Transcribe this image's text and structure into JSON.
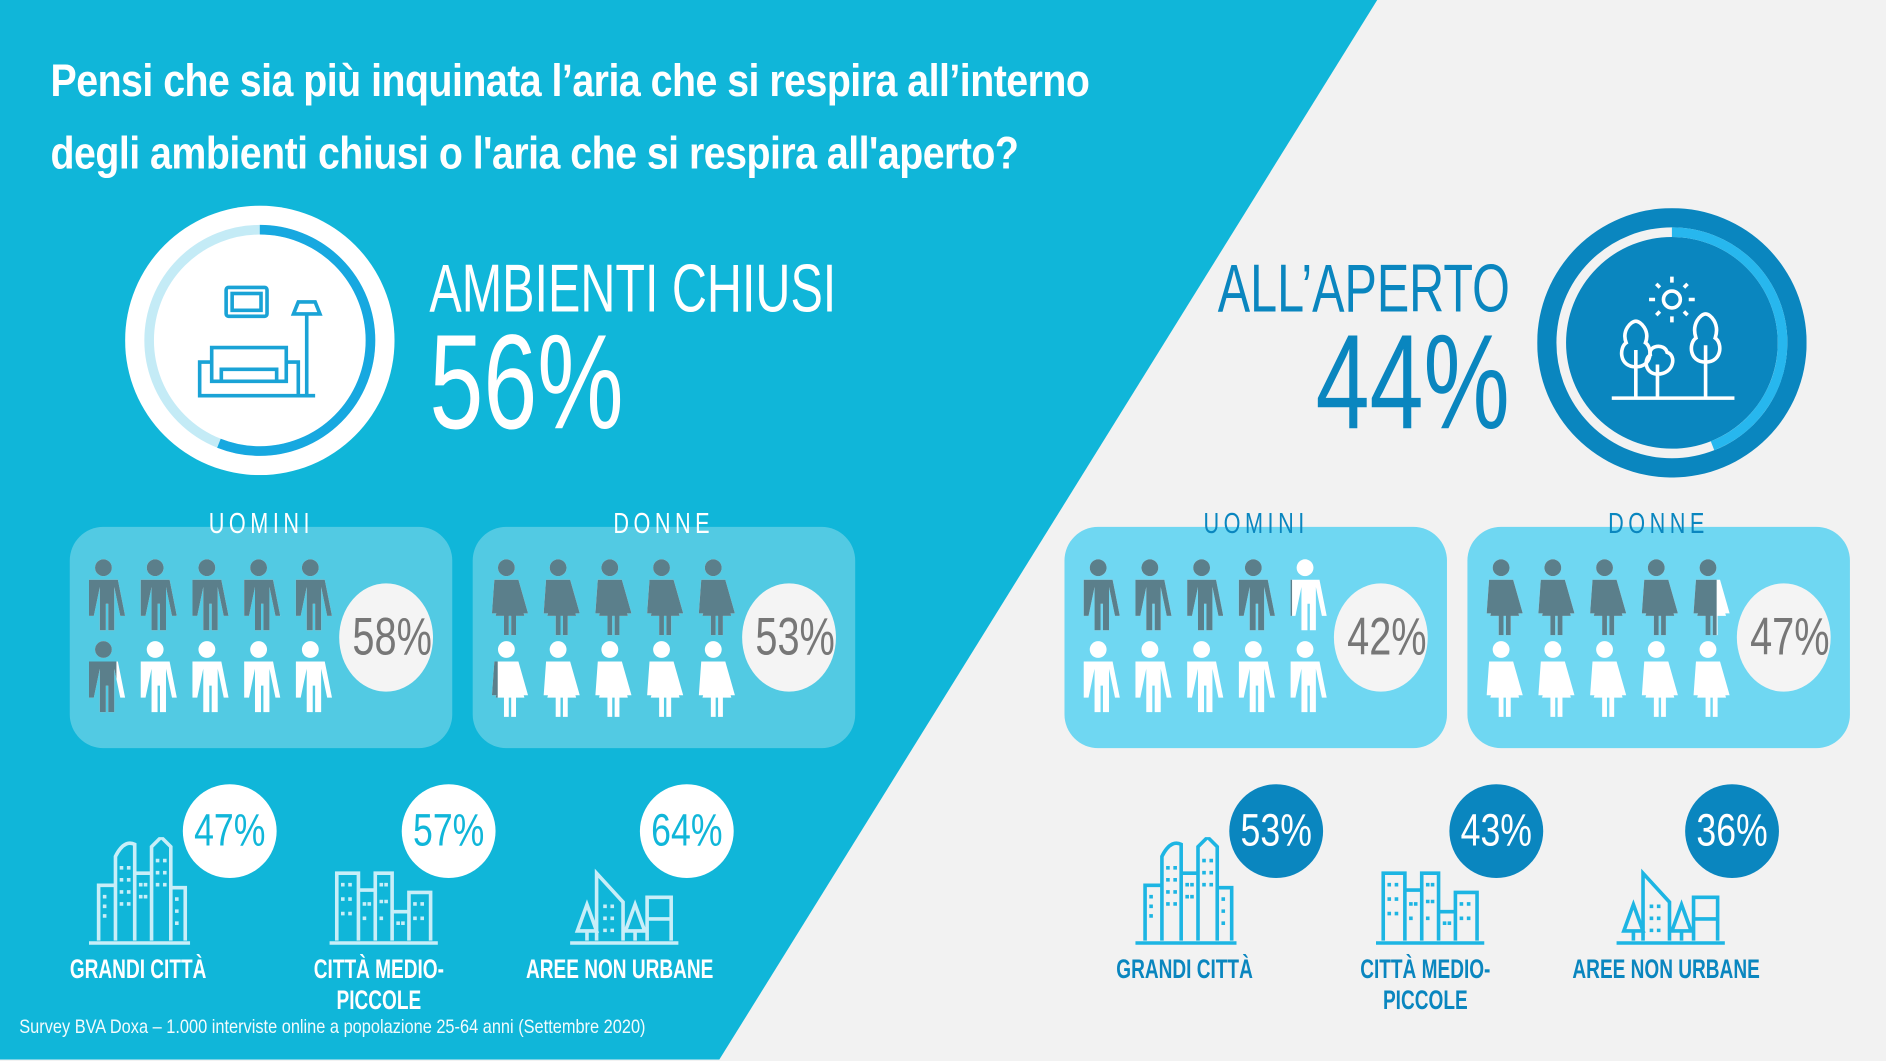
{
  "title": {
    "line1": "Pensi che sia più inquinata l’aria che si respira all’interno",
    "line2": "degli ambienti chiusi o l'aria che si respira all'aperto?"
  },
  "colors": {
    "left_bg": "#10b6d9",
    "right_bg": "#f2f2f2",
    "dark_blue": "#0a86bf",
    "figure_dark": "#5b7f8b"
  },
  "indoor": {
    "label": "AMBIENTI CHIUSI",
    "percent_text": "56%",
    "percent": 56,
    "icon": "sofa-lamp-icon",
    "men": {
      "label": "UOMINI",
      "percent_text": "58%",
      "percent": 58
    },
    "women": {
      "label": "DONNE",
      "percent_text": "53%",
      "percent": 53
    },
    "areas": [
      {
        "label": "GRANDI CITTÀ",
        "percent_text": "47%",
        "icon": "big-city-icon"
      },
      {
        "label": "CITTÀ MEDIO-PICCOLE",
        "percent_text": "57%",
        "icon": "medium-city-icon"
      },
      {
        "label": "AREE NON URBANE",
        "percent_text": "64%",
        "icon": "rural-area-icon"
      }
    ]
  },
  "outdoor": {
    "label": "ALL’APERTO",
    "percent_text": "44%",
    "percent": 44,
    "icon": "trees-sun-icon",
    "men": {
      "label": "UOMINI",
      "percent_text": "42%",
      "percent": 42
    },
    "women": {
      "label": "DONNE",
      "percent_text": "47%",
      "percent": 47
    },
    "areas": [
      {
        "label": "GRANDI CITTÀ",
        "percent_text": "53%",
        "icon": "big-city-icon"
      },
      {
        "label": "CITTÀ MEDIO-PICCOLE",
        "percent_text": "43%",
        "icon": "medium-city-icon"
      },
      {
        "label": "AREE NON URBANE",
        "percent_text": "36%",
        "icon": "rural-area-icon"
      }
    ]
  },
  "footer": "Survey BVA Doxa – 1.000 interviste online a popolazione 25-64 anni (Settembre 2020)"
}
